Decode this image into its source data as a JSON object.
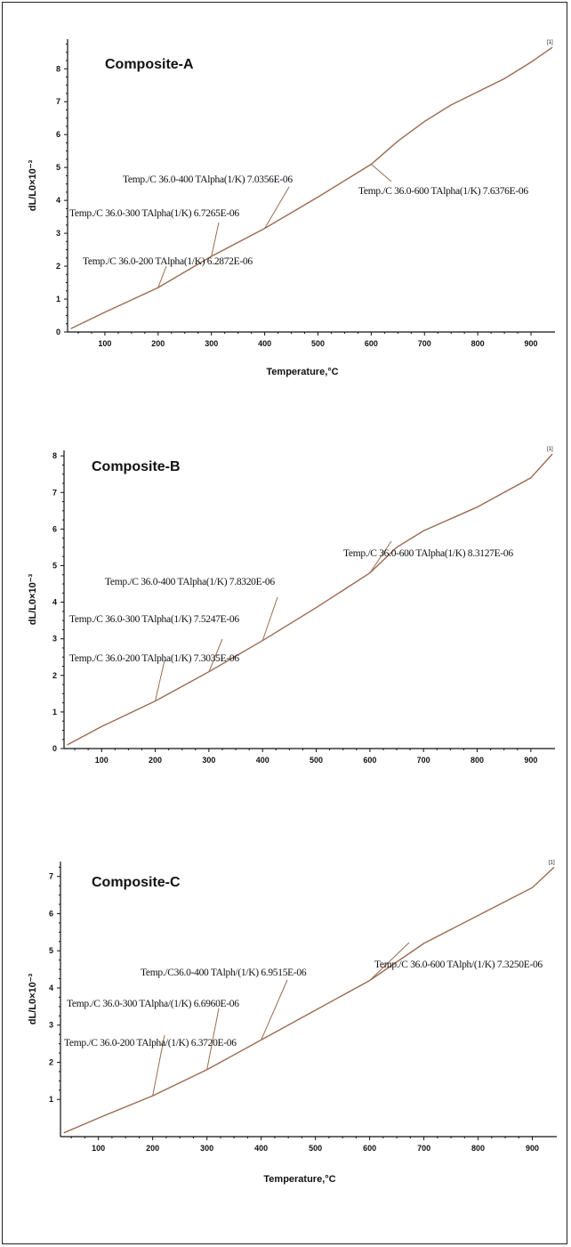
{
  "chart_data": [
    {
      "type": "line",
      "title": "Composite-A",
      "xlabel": "Temperature,°C",
      "ylabel": "dL/L0×10⁻³",
      "xlim": [
        30,
        945
      ],
      "ylim": [
        0,
        8.9
      ],
      "xticks": [
        "100",
        "200",
        "300",
        "400",
        "500",
        "600",
        "700",
        "800",
        "900"
      ],
      "yticks": [
        "0",
        "1",
        "2",
        "3",
        "4",
        "5",
        "6",
        "7",
        "8"
      ],
      "end_marker": "[1]",
      "series": [
        {
          "x": [
            36,
            100,
            200,
            300,
            400,
            500,
            600,
            650,
            700,
            750,
            800,
            850,
            900,
            940
          ],
          "y": [
            0.1,
            0.6,
            1.35,
            2.3,
            3.15,
            4.1,
            5.1,
            5.8,
            6.4,
            6.9,
            7.3,
            7.7,
            8.2,
            8.65
          ]
        }
      ],
      "annotations": [
        {
          "text": "Temp./C 36.0-200   TAlpha(1/K) 6.2872E-06",
          "x": 200,
          "y": 1.35
        },
        {
          "text": "Temp./C 36.0-300   TAlpha(1/K) 6.7265E-06",
          "x": 300,
          "y": 2.3
        },
        {
          "text": "Temp./C 36.0-400   TAlpha(1/K) 7.0356E-06",
          "x": 400,
          "y": 3.15
        },
        {
          "text": "Temp./C 36.0-600   TAlpha(1/K) 7.6376E-06",
          "x": 600,
          "y": 5.1
        }
      ]
    },
    {
      "type": "line",
      "title": "Composite-B",
      "xlabel": "",
      "ylabel": "dL/L0×10⁻³",
      "xlim": [
        30,
        945
      ],
      "ylim": [
        0,
        8.15
      ],
      "xticks": [
        "100",
        "200",
        "300",
        "400",
        "500",
        "600",
        "700",
        "800",
        "900"
      ],
      "yticks": [
        "0",
        "1",
        "2",
        "3",
        "4",
        "5",
        "6",
        "7",
        "8"
      ],
      "end_marker": "[1]",
      "series": [
        {
          "x": [
            36,
            100,
            200,
            300,
            400,
            500,
            600,
            650,
            700,
            800,
            900,
            940
          ],
          "y": [
            0.1,
            0.6,
            1.3,
            2.1,
            2.95,
            3.85,
            4.8,
            5.5,
            5.95,
            6.6,
            7.4,
            8.05
          ]
        }
      ],
      "annotations": [
        {
          "text": "Temp./C 36.0-200   TAlpha(1/K) 7.3035E-06",
          "x": 200,
          "y": 1.3
        },
        {
          "text": "Temp./C 36.0-300   TAlpha(1/K) 7.5247E-06",
          "x": 300,
          "y": 2.1
        },
        {
          "text": "Temp./C 36.0-400   TAlpha(1/K) 7.8320E-06",
          "x": 400,
          "y": 2.95
        },
        {
          "text": "Temp./C 36.0-600   TAlpha(1/K) 8.3127E-06",
          "x": 600,
          "y": 4.8
        }
      ]
    },
    {
      "type": "line",
      "title": "Composite-C",
      "xlabel": "Temperature,°C",
      "ylabel": "dL/L0×10⁻³",
      "xlim": [
        30,
        945
      ],
      "ylim": [
        0,
        7.4
      ],
      "xticks": [
        "100",
        "200",
        "300",
        "400",
        "500",
        "600",
        "700",
        "800",
        "900"
      ],
      "yticks": [
        "1",
        "2",
        "3",
        "4",
        "5",
        "6",
        "7"
      ],
      "end_marker": "[1]",
      "series": [
        {
          "x": [
            36,
            100,
            200,
            300,
            400,
            500,
            600,
            700,
            800,
            900,
            940
          ],
          "y": [
            0.1,
            0.5,
            1.1,
            1.8,
            2.6,
            3.4,
            4.2,
            5.2,
            5.95,
            6.7,
            7.25
          ]
        }
      ],
      "annotations": [
        {
          "text": "Temp./C 36.0-200   TAlpha/(1/K) 6.3720E-06",
          "x": 200,
          "y": 1.1
        },
        {
          "text": "Temp./C 36.0-300   TAlpha/(1/K) 6.6960E-06",
          "x": 300,
          "y": 1.8
        },
        {
          "text": "Temp./C36.0-400   TAlph/(1/K) 6.9515E-06",
          "x": 400,
          "y": 2.6
        },
        {
          "text": "Temp./C 36.0-600   TAlph/(1/K) 7.3250E-06",
          "x": 600,
          "y": 4.2
        }
      ]
    }
  ]
}
